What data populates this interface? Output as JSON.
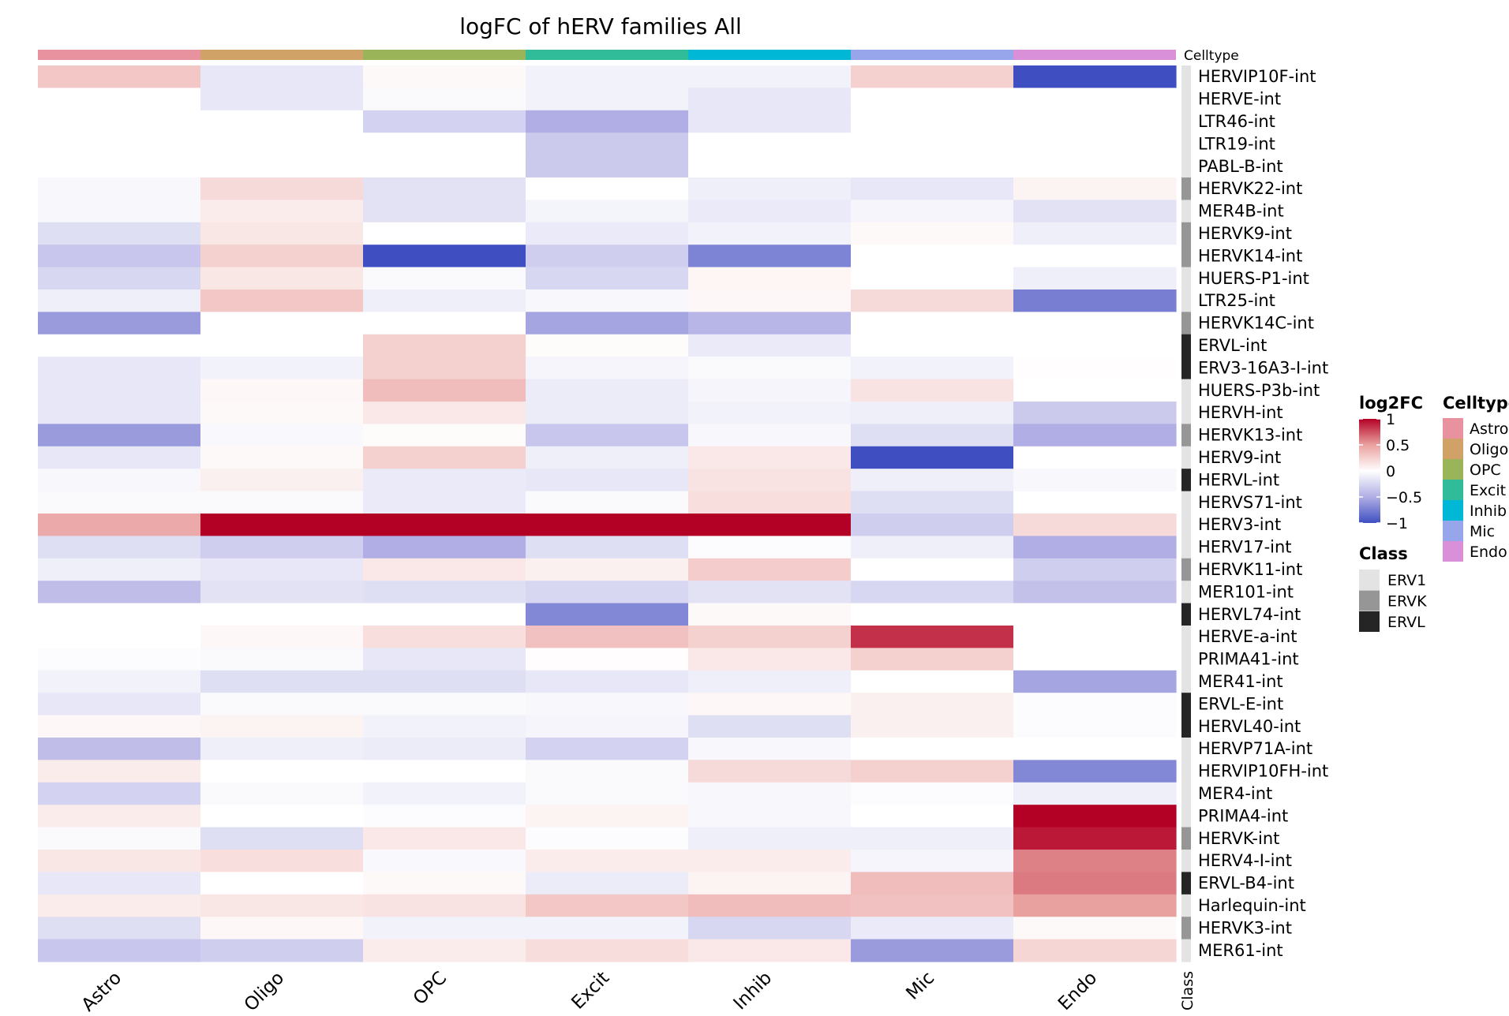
{
  "chart_data": {
    "type": "heatmap",
    "title": "logFC of hERV families All",
    "columns": [
      "Astro",
      "Oligo",
      "OPC",
      "Excit",
      "Inhib",
      "Mic",
      "Endo"
    ],
    "column_annotation": {
      "label": "Celltype",
      "colors": {
        "Astro": "#E8919F",
        "Oligo": "#D1A267",
        "OPC": "#9AB559",
        "Excit": "#30BC98",
        "Inhib": "#00B8D6",
        "Mic": "#97A6EA",
        "Endo": "#DA90D8"
      }
    },
    "row_annotation": {
      "label": "Class",
      "colors": {
        "ERV1": "#E3E3E3",
        "ERVK": "#969696",
        "ERVL": "#252525"
      }
    },
    "color_scale": {
      "name": "log2FC",
      "stops": [
        [
          -1,
          "#3F4FC1"
        ],
        [
          -0.5,
          "#B0AEE4"
        ],
        [
          0,
          "#FFFFFF"
        ],
        [
          0.5,
          "#E9A19F"
        ],
        [
          1,
          "#B30025"
        ]
      ],
      "ticks": [
        "1",
        "0.5",
        "0",
        "−0.5",
        "−1"
      ],
      "range": [
        -1,
        1
      ]
    },
    "rows": [
      {
        "name": "HERVIP10F-int",
        "class": "ERV1",
        "values": [
          0.3,
          -0.15,
          0.03,
          -0.08,
          -0.08,
          0.25,
          -1
        ]
      },
      {
        "name": "HERVE-int",
        "class": "ERV1",
        "values": [
          0,
          -0.15,
          -0.03,
          -0.08,
          -0.15,
          0,
          0
        ]
      },
      {
        "name": "LTR46-int",
        "class": "ERV1",
        "values": [
          0,
          0,
          -0.28,
          -0.5,
          -0.15,
          0,
          0
        ]
      },
      {
        "name": "LTR19-int",
        "class": "ERV1",
        "values": [
          0,
          0,
          0,
          -0.33,
          0,
          0,
          0
        ]
      },
      {
        "name": "PABL-B-int",
        "class": "ERV1",
        "values": [
          0,
          0,
          0,
          -0.33,
          0,
          0,
          0
        ]
      },
      {
        "name": "HERVK22-int",
        "class": "ERVK",
        "values": [
          -0.05,
          0.2,
          -0.18,
          0,
          -0.1,
          -0.15,
          0.06
        ]
      },
      {
        "name": "MER4B-int",
        "class": "ERV1",
        "values": [
          -0.05,
          0.1,
          -0.18,
          -0.07,
          -0.13,
          -0.06,
          -0.18
        ]
      },
      {
        "name": "HERVK9-int",
        "class": "ERVK",
        "values": [
          -0.2,
          0.13,
          0,
          -0.13,
          -0.08,
          0.03,
          -0.1
        ]
      },
      {
        "name": "HERVK14-int",
        "class": "ERVK",
        "values": [
          -0.35,
          0.25,
          -1,
          -0.3,
          -0.72,
          0,
          0
        ]
      },
      {
        "name": "HUERS-P1-int",
        "class": "ERV1",
        "values": [
          -0.25,
          0.13,
          -0.03,
          -0.25,
          0.05,
          0,
          -0.1
        ]
      },
      {
        "name": "LTR25-int",
        "class": "ERV1",
        "values": [
          -0.1,
          0.3,
          -0.1,
          -0.05,
          0.04,
          0.2,
          -0.75
        ]
      },
      {
        "name": "HERVK14C-int",
        "class": "ERVK",
        "values": [
          -0.6,
          0,
          0,
          -0.55,
          -0.45,
          0,
          0
        ]
      },
      {
        "name": "ERVL-int",
        "class": "ERVL",
        "values": [
          0,
          0,
          0.25,
          0.02,
          -0.13,
          0,
          0
        ]
      },
      {
        "name": "ERV3-16A3-I-int",
        "class": "ERVL",
        "values": [
          -0.15,
          -0.08,
          0.25,
          -0.06,
          -0.03,
          -0.08,
          0.01
        ]
      },
      {
        "name": "HUERS-P3b-int",
        "class": "ERV1",
        "values": [
          -0.15,
          0.04,
          0.35,
          -0.12,
          -0.06,
          0.15,
          0
        ]
      },
      {
        "name": "HERVH-int",
        "class": "ERV1",
        "values": [
          -0.15,
          0.03,
          0.12,
          -0.12,
          -0.08,
          -0.1,
          -0.33
        ]
      },
      {
        "name": "HERVK13-int",
        "class": "ERVK",
        "values": [
          -0.6,
          -0.04,
          0.02,
          -0.35,
          -0.05,
          -0.2,
          -0.5
        ]
      },
      {
        "name": "HERV9-int",
        "class": "ERV1",
        "values": [
          -0.15,
          0.03,
          0.25,
          -0.1,
          0.12,
          -1,
          0
        ]
      },
      {
        "name": "HERVL-int",
        "class": "ERVL",
        "values": [
          -0.05,
          0.08,
          -0.13,
          -0.15,
          0.15,
          -0.1,
          -0.05
        ]
      },
      {
        "name": "HERVS71-int",
        "class": "ERV1",
        "values": [
          -0.03,
          -0.03,
          -0.13,
          -0.03,
          0.17,
          -0.2,
          0
        ]
      },
      {
        "name": "HERV3-int",
        "class": "ERV1",
        "values": [
          0.45,
          1,
          1,
          1,
          1,
          -0.3,
          0.2
        ]
      },
      {
        "name": "HERV17-int",
        "class": "ERV1",
        "values": [
          -0.2,
          -0.3,
          -0.5,
          -0.2,
          -0.02,
          -0.1,
          -0.5
        ]
      },
      {
        "name": "HERVK11-int",
        "class": "ERVK",
        "values": [
          -0.1,
          -0.15,
          0.12,
          0.08,
          0.27,
          0,
          -0.3
        ]
      },
      {
        "name": "MER101-int",
        "class": "ERV1",
        "values": [
          -0.4,
          -0.18,
          -0.2,
          -0.25,
          -0.18,
          -0.25,
          -0.38
        ]
      },
      {
        "name": "HERVL74-int",
        "class": "ERVL",
        "values": [
          0,
          0,
          0,
          -0.7,
          0.03,
          0,
          0
        ]
      },
      {
        "name": "HERVE-a-int",
        "class": "ERV1",
        "values": [
          0,
          0.04,
          0.17,
          0.33,
          0.25,
          0.85,
          0
        ]
      },
      {
        "name": "PRIMA41-int",
        "class": "ERV1",
        "values": [
          -0.02,
          -0.03,
          -0.15,
          0.01,
          0.12,
          0.25,
          0
        ]
      },
      {
        "name": "MER41-int",
        "class": "ERV1",
        "values": [
          -0.08,
          -0.2,
          -0.2,
          -0.15,
          -0.1,
          0,
          -0.55
        ]
      },
      {
        "name": "ERVL-E-int",
        "class": "ERVL",
        "values": [
          -0.15,
          -0.03,
          -0.03,
          -0.05,
          0.04,
          0.08,
          -0.02
        ]
      },
      {
        "name": "HERVL40-int",
        "class": "ERVL",
        "values": [
          0.04,
          0.06,
          -0.08,
          -0.06,
          -0.2,
          0.08,
          -0.02
        ]
      },
      {
        "name": "HERVP71A-int",
        "class": "ERV1",
        "values": [
          -0.4,
          -0.1,
          -0.12,
          -0.28,
          -0.05,
          0,
          0
        ]
      },
      {
        "name": "HERVIP10FH-int",
        "class": "ERV1",
        "values": [
          0.1,
          0,
          0,
          -0.03,
          0.2,
          0.25,
          -0.7
        ]
      },
      {
        "name": "MER4-int",
        "class": "ERV1",
        "values": [
          -0.28,
          -0.03,
          -0.08,
          -0.03,
          -0.05,
          -0.02,
          -0.1
        ]
      },
      {
        "name": "PRIMA4-int",
        "class": "ERV1",
        "values": [
          0.1,
          0,
          -0.02,
          0.06,
          -0.05,
          0,
          1
        ]
      },
      {
        "name": "HERVK-int",
        "class": "ERVK",
        "values": [
          -0.03,
          -0.2,
          0.12,
          -0.02,
          -0.1,
          -0.1,
          0.93
        ]
      },
      {
        "name": "HERV4-I-int",
        "class": "ERV1",
        "values": [
          0.13,
          0.17,
          -0.04,
          0.1,
          0.1,
          -0.06,
          0.6
        ]
      },
      {
        "name": "ERVL-B4-int",
        "class": "ERVL",
        "values": [
          -0.15,
          0,
          0.03,
          -0.12,
          0.06,
          0.35,
          0.62
        ]
      },
      {
        "name": "Harlequin-int",
        "class": "ERV1",
        "values": [
          0.1,
          0.13,
          0.15,
          0.3,
          0.35,
          0.33,
          0.5
        ]
      },
      {
        "name": "HERVK3-int",
        "class": "ERVK",
        "values": [
          -0.2,
          0.04,
          -0.08,
          -0.08,
          -0.25,
          -0.13,
          0.03
        ]
      },
      {
        "name": "MER61-int",
        "class": "ERV1",
        "values": [
          -0.35,
          -0.3,
          0.1,
          0.18,
          0.12,
          -0.6,
          0.22
        ]
      }
    ],
    "legends": {
      "log2fc_title": "log2FC",
      "celltype_title": "Celltype",
      "class_title": "Class",
      "class_items": [
        "ERV1",
        "ERVK",
        "ERVL"
      ]
    }
  }
}
